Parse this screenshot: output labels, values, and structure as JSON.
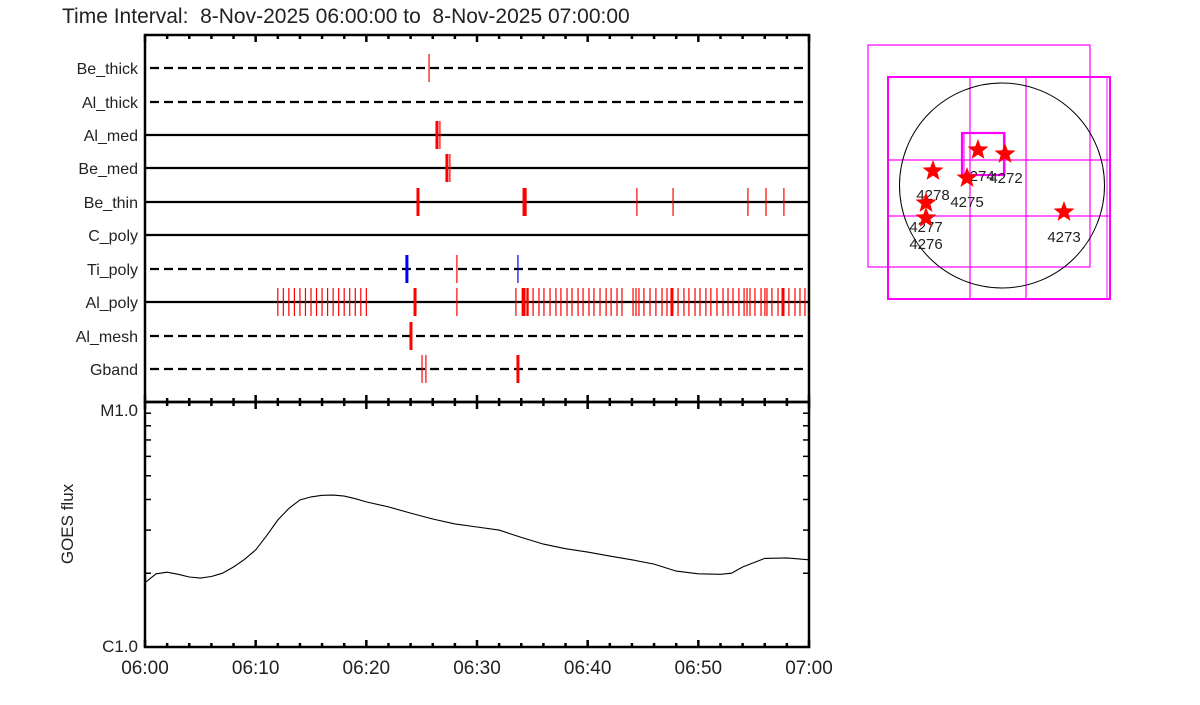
{
  "title": "Time Interval:  8-Nov-2025 06:00:00 to  8-Nov-2025 07:00:00",
  "colors": {
    "red": "#ff0000",
    "blue": "#0000ff",
    "magenta": "#ff00ff",
    "axis": "#000000"
  },
  "chart_data": [
    {
      "type": "event-timeline",
      "x_range": [
        "06:00",
        "07:00"
      ],
      "rows": [
        {
          "label": "Be_thick",
          "line": "dashed",
          "events": [
            {
              "t": "06:25:40",
              "c": "red",
              "w": "thin"
            }
          ]
        },
        {
          "label": "Al_thick",
          "line": "dashed",
          "events": []
        },
        {
          "label": "Al_med",
          "line": "solid",
          "events": [
            {
              "t": "06:26:23",
              "c": "red",
              "w": "thick"
            },
            {
              "t": "06:26:39",
              "c": "red",
              "w": "thin"
            }
          ]
        },
        {
          "label": "Be_med",
          "line": "solid",
          "events": [
            {
              "t": "06:27:17",
              "c": "red",
              "w": "thick"
            },
            {
              "t": "06:27:33",
              "c": "red",
              "w": "thin"
            }
          ]
        },
        {
          "label": "Be_thin",
          "line": "solid",
          "events": [
            {
              "t": "06:24:40",
              "c": "red",
              "w": "thick"
            },
            {
              "t": "06:34:15",
              "c": "red",
              "w": "thick"
            },
            {
              "t": "06:34:26",
              "c": "red",
              "w": "thin"
            },
            {
              "t": "06:44:27",
              "c": "red",
              "w": "thin"
            },
            {
              "t": "06:47:43",
              "c": "red",
              "w": "thin"
            },
            {
              "t": "06:54:29",
              "c": "red",
              "w": "thin"
            },
            {
              "t": "06:56:07",
              "c": "red",
              "w": "thin"
            },
            {
              "t": "06:57:44",
              "c": "red",
              "w": "thin"
            }
          ]
        },
        {
          "label": "C_poly",
          "line": "solid",
          "events": []
        },
        {
          "label": "Ti_poly",
          "line": "dashed",
          "events": [
            {
              "t": "06:23:40",
              "c": "blue",
              "w": "thick"
            },
            {
              "t": "06:28:11",
              "c": "red",
              "w": "thin"
            },
            {
              "t": "06:33:42",
              "c": "blue",
              "w": "thin"
            }
          ]
        },
        {
          "label": "Al_poly",
          "line": "solid",
          "events": [
            {
              "t": "06:12:00",
              "c": "red",
              "w": "thin"
            },
            {
              "t": "06:12:30",
              "c": "red",
              "w": "thin"
            },
            {
              "t": "06:13:00",
              "c": "red",
              "w": "thin"
            },
            {
              "t": "06:13:30",
              "c": "red",
              "w": "thin"
            },
            {
              "t": "06:14:00",
              "c": "red",
              "w": "thin"
            },
            {
              "t": "06:14:30",
              "c": "red",
              "w": "thin"
            },
            {
              "t": "06:15:00",
              "c": "red",
              "w": "thin"
            },
            {
              "t": "06:15:30",
              "c": "red",
              "w": "thin"
            },
            {
              "t": "06:16:00",
              "c": "red",
              "w": "thin"
            },
            {
              "t": "06:16:30",
              "c": "red",
              "w": "thin"
            },
            {
              "t": "06:17:00",
              "c": "red",
              "w": "thin"
            },
            {
              "t": "06:17:30",
              "c": "red",
              "w": "thin"
            },
            {
              "t": "06:18:00",
              "c": "red",
              "w": "thin"
            },
            {
              "t": "06:18:30",
              "c": "red",
              "w": "thin"
            },
            {
              "t": "06:19:00",
              "c": "red",
              "w": "thin"
            },
            {
              "t": "06:19:30",
              "c": "red",
              "w": "thin"
            },
            {
              "t": "06:20:00",
              "c": "red",
              "w": "thin"
            },
            {
              "t": "06:24:24",
              "c": "red",
              "w": "thick"
            },
            {
              "t": "06:28:11",
              "c": "red",
              "w": "thin"
            },
            {
              "t": "06:33:31",
              "c": "red",
              "w": "thin"
            },
            {
              "t": "06:34:10",
              "c": "red",
              "w": "thick"
            },
            {
              "t": "06:34:20",
              "c": "red",
              "w": "thin"
            },
            {
              "t": "06:34:31",
              "c": "red",
              "w": "thin"
            },
            {
              "t": "06:34:37",
              "c": "red",
              "w": "thin"
            },
            {
              "t": "06:35:04",
              "c": "red",
              "w": "thin"
            },
            {
              "t": "06:35:36",
              "c": "red",
              "w": "thin"
            },
            {
              "t": "06:36:03",
              "c": "red",
              "w": "thin"
            },
            {
              "t": "06:36:36",
              "c": "red",
              "w": "thin"
            },
            {
              "t": "06:37:08",
              "c": "red",
              "w": "thin"
            },
            {
              "t": "06:37:35",
              "c": "red",
              "w": "thin"
            },
            {
              "t": "06:38:08",
              "c": "red",
              "w": "thin"
            },
            {
              "t": "06:38:35",
              "c": "red",
              "w": "thin"
            },
            {
              "t": "06:39:08",
              "c": "red",
              "w": "thin"
            },
            {
              "t": "06:39:35",
              "c": "red",
              "w": "thin"
            },
            {
              "t": "06:40:07",
              "c": "red",
              "w": "thin"
            },
            {
              "t": "06:40:34",
              "c": "red",
              "w": "thin"
            },
            {
              "t": "06:41:07",
              "c": "red",
              "w": "thin"
            },
            {
              "t": "06:41:40",
              "c": "red",
              "w": "thin"
            },
            {
              "t": "06:42:07",
              "c": "red",
              "w": "thin"
            },
            {
              "t": "06:42:39",
              "c": "red",
              "w": "thin"
            },
            {
              "t": "06:43:06",
              "c": "red",
              "w": "thin"
            },
            {
              "t": "06:44:06",
              "c": "red",
              "w": "thin"
            },
            {
              "t": "06:44:22",
              "c": "red",
              "w": "thin"
            },
            {
              "t": "06:44:38",
              "c": "red",
              "w": "thin"
            },
            {
              "t": "06:45:05",
              "c": "red",
              "w": "thin"
            },
            {
              "t": "06:45:38",
              "c": "red",
              "w": "thin"
            },
            {
              "t": "06:46:10",
              "c": "red",
              "w": "thin"
            },
            {
              "t": "06:46:43",
              "c": "red",
              "w": "thin"
            },
            {
              "t": "06:47:10",
              "c": "red",
              "w": "thin"
            },
            {
              "t": "06:47:37",
              "c": "red",
              "w": "thick"
            },
            {
              "t": "06:48:10",
              "c": "red",
              "w": "thin"
            },
            {
              "t": "06:48:42",
              "c": "red",
              "w": "thin"
            },
            {
              "t": "06:49:09",
              "c": "red",
              "w": "thin"
            },
            {
              "t": "06:49:42",
              "c": "red",
              "w": "thin"
            },
            {
              "t": "06:50:09",
              "c": "red",
              "w": "thin"
            },
            {
              "t": "06:50:41",
              "c": "red",
              "w": "thin"
            },
            {
              "t": "06:51:08",
              "c": "red",
              "w": "thin"
            },
            {
              "t": "06:51:41",
              "c": "red",
              "w": "thin"
            },
            {
              "t": "06:52:14",
              "c": "red",
              "w": "thin"
            },
            {
              "t": "06:52:41",
              "c": "red",
              "w": "thin"
            },
            {
              "t": "06:53:08",
              "c": "red",
              "w": "thin"
            },
            {
              "t": "06:53:40",
              "c": "red",
              "w": "thin"
            },
            {
              "t": "06:54:08",
              "c": "red",
              "w": "thin"
            },
            {
              "t": "06:54:24",
              "c": "red",
              "w": "thin"
            },
            {
              "t": "06:54:40",
              "c": "red",
              "w": "thin"
            },
            {
              "t": "06:55:07",
              "c": "red",
              "w": "thin"
            },
            {
              "t": "06:55:40",
              "c": "red",
              "w": "thin"
            },
            {
              "t": "06:56:01",
              "c": "red",
              "w": "thin"
            },
            {
              "t": "06:56:12",
              "c": "red",
              "w": "thin"
            },
            {
              "t": "06:56:39",
              "c": "red",
              "w": "thin"
            },
            {
              "t": "06:57:12",
              "c": "red",
              "w": "thin"
            },
            {
              "t": "06:57:39",
              "c": "red",
              "w": "thick"
            },
            {
              "t": "06:58:11",
              "c": "red",
              "w": "thin"
            },
            {
              "t": "06:58:44",
              "c": "red",
              "w": "thin"
            },
            {
              "t": "06:59:11",
              "c": "red",
              "w": "thin"
            },
            {
              "t": "06:59:38",
              "c": "red",
              "w": "thin"
            }
          ]
        },
        {
          "label": "Al_mesh",
          "line": "dashed",
          "events": [
            {
              "t": "06:24:02",
              "c": "red",
              "w": "thick"
            }
          ]
        },
        {
          "label": "Gband",
          "line": "dashed",
          "events": [
            {
              "t": "06:25:02",
              "c": "red",
              "w": "thin"
            },
            {
              "t": "06:25:23",
              "c": "red",
              "w": "thin"
            },
            {
              "t": "06:33:42",
              "c": "red",
              "w": "thick"
            }
          ]
        }
      ]
    },
    {
      "type": "line",
      "ylabel": "GOES flux",
      "yscale": "log",
      "ylim": [
        1e-06,
        1e-05
      ],
      "ytick_labels": [
        "C1.0",
        "M1.0"
      ],
      "xlim": [
        "06:00",
        "07:00"
      ],
      "xtick_labels": [
        "06:00",
        "06:10",
        "06:20",
        "06:30",
        "06:40",
        "06:50",
        "07:00"
      ],
      "points": [
        [
          "06:00",
          1.83e-06
        ],
        [
          "06:01",
          1.99e-06
        ],
        [
          "06:02",
          2.02e-06
        ],
        [
          "06:03",
          1.98e-06
        ],
        [
          "06:04",
          1.93e-06
        ],
        [
          "06:05",
          1.91e-06
        ],
        [
          "06:06",
          1.94e-06
        ],
        [
          "06:07",
          2e-06
        ],
        [
          "06:08",
          2.12e-06
        ],
        [
          "06:09",
          2.28e-06
        ],
        [
          "06:10",
          2.49e-06
        ],
        [
          "06:11",
          2.85e-06
        ],
        [
          "06:12",
          3.3e-06
        ],
        [
          "06:13",
          3.68e-06
        ],
        [
          "06:14",
          3.98e-06
        ],
        [
          "06:15",
          4.1e-06
        ],
        [
          "06:16",
          4.16e-06
        ],
        [
          "06:17",
          4.17e-06
        ],
        [
          "06:18",
          4.13e-06
        ],
        [
          "06:19",
          4.03e-06
        ],
        [
          "06:20",
          3.91e-06
        ],
        [
          "06:22",
          3.73e-06
        ],
        [
          "06:24",
          3.52e-06
        ],
        [
          "06:26",
          3.33e-06
        ],
        [
          "06:28",
          3.18e-06
        ],
        [
          "06:30",
          3.09e-06
        ],
        [
          "06:32",
          3e-06
        ],
        [
          "06:34",
          2.8e-06
        ],
        [
          "06:36",
          2.63e-06
        ],
        [
          "06:38",
          2.52e-06
        ],
        [
          "06:40",
          2.44e-06
        ],
        [
          "06:42",
          2.35e-06
        ],
        [
          "06:44",
          2.27e-06
        ],
        [
          "06:46",
          2.18e-06
        ],
        [
          "06:48",
          2.04e-06
        ],
        [
          "06:50",
          1.99e-06
        ],
        [
          "06:52",
          1.98e-06
        ],
        [
          "06:53",
          2e-06
        ],
        [
          "06:54",
          2.12e-06
        ],
        [
          "06:56",
          2.3e-06
        ],
        [
          "06:58",
          2.31e-06
        ],
        [
          "07:00",
          2.27e-06
        ]
      ]
    },
    {
      "type": "disk-map",
      "regions": [
        "4274",
        "4272",
        "4278",
        "4275",
        "4277",
        "4276",
        "4273"
      ]
    }
  ]
}
